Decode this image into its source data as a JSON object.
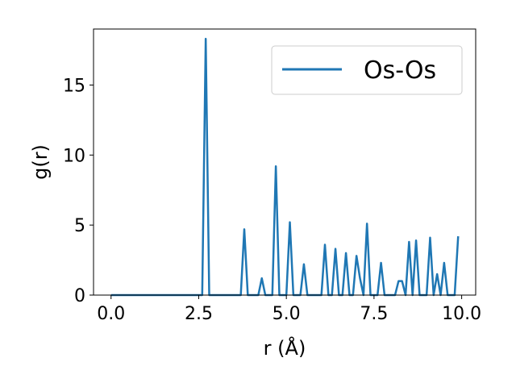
{
  "chart_data": {
    "type": "line",
    "title": "",
    "xlabel": "r (Å)",
    "ylabel": "g(r)",
    "xlim": [
      -0.5,
      10.4
    ],
    "ylim": [
      0,
      19.0
    ],
    "xticks": [
      0.0,
      2.5,
      5.0,
      7.5,
      10.0
    ],
    "xtick_labels": [
      "0.0",
      "2.5",
      "5.0",
      "7.5",
      "10.0"
    ],
    "yticks": [
      0,
      5,
      10,
      15
    ],
    "ytick_labels": [
      "0",
      "5",
      "10",
      "15"
    ],
    "grid": false,
    "legend_position": "top-right",
    "series": [
      {
        "name": "Os-Os",
        "color": "#1f77b4",
        "x": [
          0.0,
          0.1,
          0.2,
          0.3,
          0.4,
          0.5,
          0.6,
          0.7,
          0.8,
          0.9,
          1.0,
          1.1,
          1.2,
          1.3,
          1.4,
          1.5,
          1.6,
          1.7,
          1.8,
          1.9,
          2.0,
          2.1,
          2.2,
          2.3,
          2.4,
          2.5,
          2.6,
          2.7,
          2.8,
          2.9,
          3.0,
          3.1,
          3.2,
          3.3,
          3.4,
          3.5,
          3.6,
          3.7,
          3.8,
          3.9,
          4.0,
          4.1,
          4.2,
          4.3,
          4.4,
          4.5,
          4.6,
          4.7,
          4.8,
          4.9,
          5.0,
          5.1,
          5.2,
          5.3,
          5.4,
          5.5,
          5.6,
          5.7,
          5.8,
          5.9,
          6.0,
          6.1,
          6.2,
          6.3,
          6.4,
          6.5,
          6.6,
          6.7,
          6.8,
          6.9,
          7.0,
          7.1,
          7.2,
          7.3,
          7.4,
          7.5,
          7.6,
          7.7,
          7.8,
          7.9,
          8.0,
          8.1,
          8.2,
          8.3,
          8.4,
          8.5,
          8.6,
          8.7,
          8.8,
          8.9,
          9.0,
          9.1,
          9.2,
          9.3,
          9.4,
          9.5,
          9.6,
          9.7,
          9.8,
          9.9
        ],
        "y": [
          0,
          0,
          0,
          0,
          0,
          0,
          0,
          0,
          0,
          0,
          0,
          0,
          0,
          0,
          0,
          0,
          0,
          0,
          0,
          0,
          0,
          0,
          0,
          0,
          0,
          0,
          0,
          18.3,
          0,
          0,
          0,
          0,
          0,
          0,
          0,
          0,
          0,
          0,
          4.7,
          0,
          0,
          0,
          0,
          1.2,
          0,
          0,
          0,
          9.2,
          0,
          0,
          0,
          5.2,
          0,
          0,
          0,
          2.2,
          0,
          0,
          0,
          0,
          0,
          3.6,
          0,
          0,
          3.3,
          0,
          0,
          3.0,
          0,
          0,
          2.8,
          1.2,
          0,
          5.1,
          0,
          0,
          0,
          2.3,
          0,
          0,
          0,
          0,
          1.0,
          1.0,
          0,
          3.8,
          0,
          3.9,
          0,
          0,
          0,
          4.1,
          0,
          1.5,
          0,
          2.3,
          0,
          0,
          0,
          4.2
        ]
      }
    ]
  }
}
